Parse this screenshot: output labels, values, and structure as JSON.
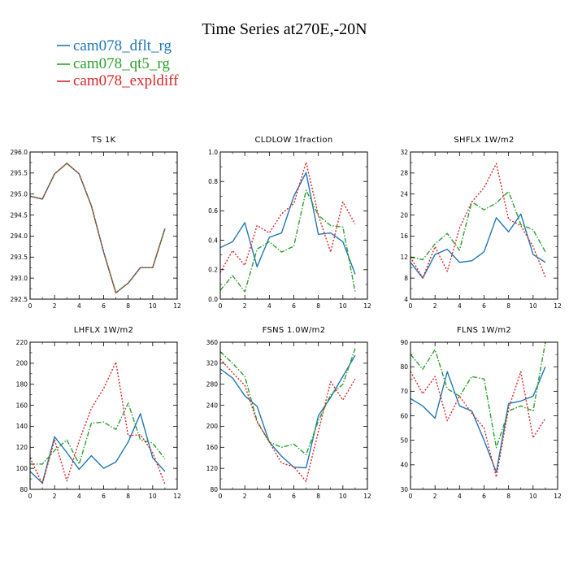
{
  "figure": {
    "title": "Time Series at270E,-20N",
    "legend": [
      {
        "name": "cam078_dflt_rg",
        "color": "#1f77b4",
        "dash": "solid"
      },
      {
        "name": "cam078_qt5_rg",
        "color": "#2ca02c",
        "dash": "dashdot"
      },
      {
        "name": "cam078_expldiff",
        "color": "#d62728",
        "dash": "dotted"
      }
    ]
  },
  "chart_data": [
    {
      "type": "line",
      "title": "TS    1K",
      "x": [
        0,
        1,
        2,
        3,
        4,
        5,
        6,
        7,
        8,
        9,
        10,
        11
      ],
      "xlim": [
        0,
        12
      ],
      "xticks": [
        "0",
        "2",
        "4",
        "6",
        "8",
        "10",
        "12"
      ],
      "ylim": [
        292.5,
        296.0
      ],
      "yticks": [
        "292.5",
        "293.0",
        "293.5",
        "294.0",
        "294.5",
        "295.0",
        "295.5",
        "296.0"
      ],
      "series": [
        {
          "name": "cam078_dflt_rg",
          "values": [
            294.95,
            294.88,
            295.48,
            295.73,
            295.48,
            294.72,
            293.62,
            292.65,
            292.88,
            293.25,
            293.25,
            294.18
          ]
        },
        {
          "name": "cam078_qt5_rg",
          "values": [
            294.95,
            294.88,
            295.48,
            295.73,
            295.48,
            294.72,
            293.62,
            292.65,
            292.88,
            293.25,
            293.25,
            294.18
          ]
        },
        {
          "name": "cam078_expldiff",
          "values": [
            294.95,
            294.88,
            295.48,
            295.73,
            295.48,
            294.72,
            293.62,
            292.65,
            292.88,
            293.25,
            293.25,
            294.18
          ]
        }
      ]
    },
    {
      "type": "line",
      "title": "CLDLOW    1fraction",
      "x": [
        0,
        1,
        2,
        3,
        4,
        5,
        6,
        7,
        8,
        9,
        10,
        11
      ],
      "xlim": [
        0,
        12
      ],
      "xticks": [
        "0",
        "2",
        "4",
        "6",
        "8",
        "10",
        "12"
      ],
      "ylim": [
        0.0,
        1.0
      ],
      "yticks": [
        "0.0",
        "0.2",
        "0.4",
        "0.6",
        "0.8",
        "1.0"
      ],
      "series": [
        {
          "name": "cam078_dflt_rg",
          "values": [
            0.35,
            0.39,
            0.52,
            0.22,
            0.42,
            0.45,
            0.7,
            0.86,
            0.44,
            0.45,
            0.39,
            0.17
          ]
        },
        {
          "name": "cam078_qt5_rg",
          "values": [
            0.06,
            0.16,
            0.05,
            0.34,
            0.39,
            0.32,
            0.36,
            0.74,
            0.57,
            0.5,
            0.49,
            0.05
          ]
        },
        {
          "name": "cam078_expldiff",
          "values": [
            0.18,
            0.33,
            0.23,
            0.5,
            0.45,
            0.58,
            0.65,
            0.93,
            0.57,
            0.32,
            0.66,
            0.51
          ]
        }
      ]
    },
    {
      "type": "line",
      "title": "SHFLX    1W/m2",
      "x": [
        0,
        1,
        2,
        3,
        4,
        5,
        6,
        7,
        8,
        9,
        10,
        11
      ],
      "xlim": [
        0,
        12
      ],
      "xticks": [
        "0",
        "2",
        "4",
        "6",
        "8",
        "10",
        "12"
      ],
      "ylim": [
        4,
        32
      ],
      "yticks": [
        "4",
        "8",
        "12",
        "16",
        "20",
        "24",
        "28",
        "32"
      ],
      "series": [
        {
          "name": "cam078_dflt_rg",
          "values": [
            11.0,
            8.0,
            12.5,
            13.5,
            11.0,
            11.3,
            13.0,
            19.5,
            16.8,
            20.2,
            12.5,
            11.0
          ]
        },
        {
          "name": "cam078_qt5_rg",
          "values": [
            12.0,
            11.5,
            14.5,
            16.5,
            13.3,
            22.5,
            21.0,
            22.3,
            24.5,
            18.2,
            17.2,
            13.0
          ]
        },
        {
          "name": "cam078_expldiff",
          "values": [
            12.0,
            8.0,
            14.0,
            9.3,
            17.5,
            22.5,
            25.2,
            29.8,
            19.2,
            18.0,
            14.0,
            8.2
          ]
        }
      ]
    },
    {
      "type": "line",
      "title": "LHFLX    1W/m2",
      "x": [
        0,
        1,
        2,
        3,
        4,
        5,
        6,
        7,
        8,
        9,
        10,
        11
      ],
      "xlim": [
        0,
        12
      ],
      "xticks": [
        "0",
        "2",
        "4",
        "6",
        "8",
        "10",
        "12"
      ],
      "ylim": [
        80,
        220
      ],
      "yticks": [
        "80",
        "100",
        "120",
        "140",
        "160",
        "180",
        "200",
        "220"
      ],
      "series": [
        {
          "name": "cam078_dflt_rg",
          "values": [
            97,
            86,
            130,
            115,
            99,
            112,
            100,
            106,
            125,
            152,
            110,
            97
          ]
        },
        {
          "name": "cam078_qt5_rg",
          "values": [
            104,
            104,
            117,
            127,
            104,
            143,
            144,
            137,
            162,
            127,
            124,
            109
          ]
        },
        {
          "name": "cam078_expldiff",
          "values": [
            110,
            85,
            127,
            88,
            126,
            157,
            176,
            201,
            131,
            132,
            115,
            85
          ]
        }
      ]
    },
    {
      "type": "line",
      "title": "FSNS    1.0W/m2",
      "x": [
        0,
        1,
        2,
        3,
        4,
        5,
        6,
        7,
        8,
        9,
        10,
        11
      ],
      "xlim": [
        0,
        12
      ],
      "xticks": [
        "0",
        "2",
        "4",
        "6",
        "8",
        "10",
        "12"
      ],
      "ylim": [
        80,
        360
      ],
      "yticks": [
        "80",
        "120",
        "160",
        "200",
        "240",
        "280",
        "320",
        "360"
      ],
      "series": [
        {
          "name": "cam078_dflt_rg",
          "values": [
            309,
            292,
            258,
            238,
            170,
            143,
            122,
            121,
            220,
            255,
            295,
            335
          ]
        },
        {
          "name": "cam078_qt5_rg",
          "values": [
            342,
            320,
            295,
            210,
            170,
            160,
            166,
            146,
            210,
            260,
            280,
            348
          ]
        },
        {
          "name": "cam078_expldiff",
          "values": [
            328,
            302,
            278,
            208,
            170,
            130,
            123,
            95,
            190,
            285,
            250,
            290
          ]
        }
      ]
    },
    {
      "type": "line",
      "title": "FLNS    1W/m2",
      "x": [
        0,
        1,
        2,
        3,
        4,
        5,
        6,
        7,
        8,
        9,
        10,
        11
      ],
      "xlim": [
        0,
        12
      ],
      "xticks": [
        "0",
        "2",
        "4",
        "6",
        "8",
        "10",
        "12"
      ],
      "ylim": [
        30,
        90
      ],
      "yticks": [
        "30",
        "40",
        "50",
        "60",
        "70",
        "80",
        "90"
      ],
      "series": [
        {
          "name": "cam078_dflt_rg",
          "values": [
            67,
            64,
            59,
            78,
            64,
            62,
            50,
            37,
            65,
            66,
            68,
            80
          ]
        },
        {
          "name": "cam078_qt5_rg",
          "values": [
            85,
            79,
            87,
            71,
            68,
            76,
            75,
            47,
            62,
            64,
            62,
            90
          ]
        },
        {
          "name": "cam078_expldiff",
          "values": [
            78,
            69,
            76,
            58,
            68,
            61,
            55,
            35,
            63,
            78,
            51,
            59
          ]
        }
      ]
    }
  ]
}
